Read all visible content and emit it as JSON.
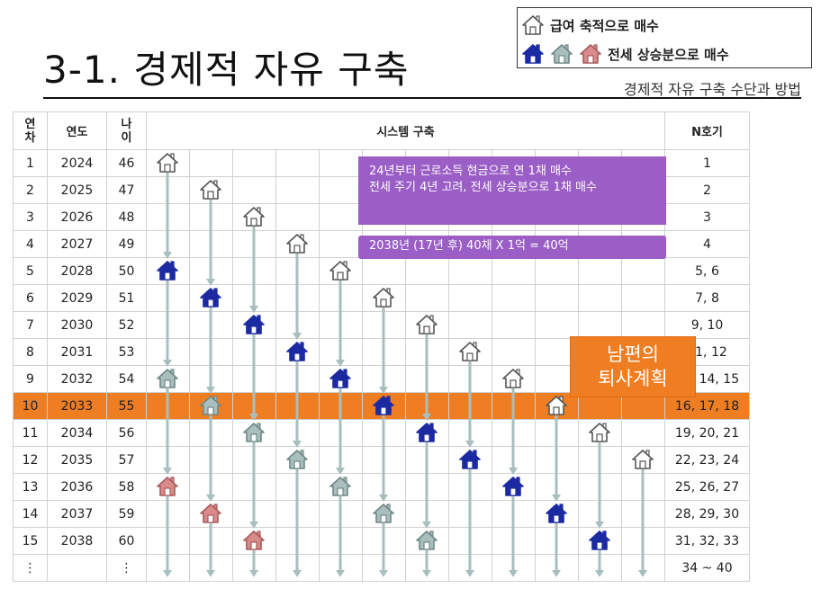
{
  "header": {
    "title": "3-1. 경제적 자유 구축",
    "subtitle": "경제적 자유 구축 수단과 방법"
  },
  "legend": {
    "salary_label": "급여 축적으로 매수",
    "deposit_label": "전세 상승분으로 매수",
    "salary_icon": "outline-house-icon",
    "deposit_icons": [
      "blue-house-icon",
      "gray-house-icon",
      "pink-house-icon"
    ]
  },
  "table": {
    "headers": {
      "year_index": "연\n차",
      "year": "연도",
      "age": "나\n이",
      "system": "시스템 구축",
      "count": "N호기"
    },
    "rows": [
      {
        "idx": "1",
        "year": "2024",
        "age": "46",
        "count": "1"
      },
      {
        "idx": "2",
        "year": "2025",
        "age": "47",
        "count": "2"
      },
      {
        "idx": "3",
        "year": "2026",
        "age": "48",
        "count": "3"
      },
      {
        "idx": "4",
        "year": "2027",
        "age": "49",
        "count": "4"
      },
      {
        "idx": "5",
        "year": "2028",
        "age": "50",
        "count": "5, 6"
      },
      {
        "idx": "6",
        "year": "2029",
        "age": "51",
        "count": "7, 8"
      },
      {
        "idx": "7",
        "year": "2030",
        "age": "52",
        "count": "9, 10"
      },
      {
        "idx": "8",
        "year": "2031",
        "age": "53",
        "count": "11, 12"
      },
      {
        "idx": "9",
        "year": "2032",
        "age": "54",
        "count": "13, 14, 15"
      },
      {
        "idx": "10",
        "year": "2033",
        "age": "55",
        "count": "16, 17, 18"
      },
      {
        "idx": "11",
        "year": "2034",
        "age": "56",
        "count": "19, 20, 21"
      },
      {
        "idx": "12",
        "year": "2035",
        "age": "57",
        "count": "22, 23, 24"
      },
      {
        "idx": "13",
        "year": "2036",
        "age": "58",
        "count": "25, 26, 27"
      },
      {
        "idx": "14",
        "year": "2037",
        "age": "59",
        "count": "28, 29, 30"
      },
      {
        "idx": "15",
        "year": "2038",
        "age": "60",
        "count": "31, 32, 33"
      },
      {
        "idx": "⋮",
        "year": "",
        "age": "⋮",
        "count": "34 ~ 40"
      }
    ],
    "highlight_row": 10
  },
  "houses": [
    {
      "col": 1,
      "row": 1,
      "kind": "outline"
    },
    {
      "col": 2,
      "row": 2,
      "kind": "outline"
    },
    {
      "col": 3,
      "row": 3,
      "kind": "outline"
    },
    {
      "col": 4,
      "row": 4,
      "kind": "outline"
    },
    {
      "col": 1,
      "row": 5,
      "kind": "blue"
    },
    {
      "col": 5,
      "row": 5,
      "kind": "outline"
    },
    {
      "col": 2,
      "row": 6,
      "kind": "blue"
    },
    {
      "col": 6,
      "row": 6,
      "kind": "outline"
    },
    {
      "col": 3,
      "row": 7,
      "kind": "blue"
    },
    {
      "col": 7,
      "row": 7,
      "kind": "outline"
    },
    {
      "col": 4,
      "row": 8,
      "kind": "blue"
    },
    {
      "col": 8,
      "row": 8,
      "kind": "outline"
    },
    {
      "col": 1,
      "row": 9,
      "kind": "gray"
    },
    {
      "col": 5,
      "row": 9,
      "kind": "blue"
    },
    {
      "col": 9,
      "row": 9,
      "kind": "outline"
    },
    {
      "col": 2,
      "row": 10,
      "kind": "gray"
    },
    {
      "col": 6,
      "row": 10,
      "kind": "blue"
    },
    {
      "col": 10,
      "row": 10,
      "kind": "outline"
    },
    {
      "col": 3,
      "row": 11,
      "kind": "gray"
    },
    {
      "col": 7,
      "row": 11,
      "kind": "blue"
    },
    {
      "col": 11,
      "row": 11,
      "kind": "outline"
    },
    {
      "col": 4,
      "row": 12,
      "kind": "gray"
    },
    {
      "col": 8,
      "row": 12,
      "kind": "blue"
    },
    {
      "col": 12,
      "row": 12,
      "kind": "outline"
    },
    {
      "col": 1,
      "row": 13,
      "kind": "pink"
    },
    {
      "col": 5,
      "row": 13,
      "kind": "gray"
    },
    {
      "col": 9,
      "row": 13,
      "kind": "blue"
    },
    {
      "col": 2,
      "row": 14,
      "kind": "pink"
    },
    {
      "col": 6,
      "row": 14,
      "kind": "gray"
    },
    {
      "col": 10,
      "row": 14,
      "kind": "blue"
    },
    {
      "col": 3,
      "row": 15,
      "kind": "pink"
    },
    {
      "col": 7,
      "row": 15,
      "kind": "gray"
    },
    {
      "col": 11,
      "row": 15,
      "kind": "blue"
    }
  ],
  "callouts": {
    "note_line1": "24년부터 근로소득 현금으로 연 1채 매수",
    "note_line2": "전세 주기 4년 고려, 전세 상승분으로 1채 매수",
    "total": "2038년 (17년  후) 40채 X 1억 = 40억"
  },
  "plan": {
    "line1": "남편의",
    "line2": "퇴사계획"
  },
  "colors": {
    "highlight": "#ef7d22",
    "callout": "#9a5ec6",
    "house_blue": "#1b2aa0",
    "house_gray": "#a9bfbd",
    "house_pink": "#d98a8a",
    "arrow": "#a9bfbd"
  }
}
